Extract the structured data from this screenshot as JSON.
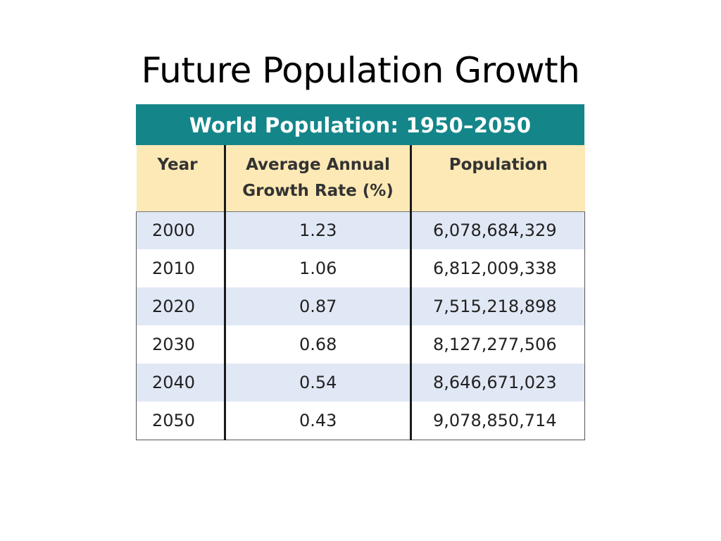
{
  "slide": {
    "title": "Future Population Growth"
  },
  "table": {
    "banner": "World Population: 1950–2050",
    "headers": {
      "year": "Year",
      "rate_line1": "Average Annual",
      "rate_line2": "Growth Rate (%)",
      "population": "Population"
    },
    "rows": [
      {
        "year": "2000",
        "rate": "1.23",
        "population": "6,078,684,329"
      },
      {
        "year": "2010",
        "rate": "1.06",
        "population": "6,812,009,338"
      },
      {
        "year": "2020",
        "rate": "0.87",
        "population": "7,515,218,898"
      },
      {
        "year": "2030",
        "rate": "0.68",
        "population": "8,127,277,506"
      },
      {
        "year": "2040",
        "rate": "0.54",
        "population": "8,646,671,023"
      },
      {
        "year": "2050",
        "rate": "0.43",
        "population": "9,078,850,714"
      }
    ]
  },
  "colors": {
    "banner": "#14868a",
    "header": "#fde9b5",
    "row_band": "#e1e8f5"
  }
}
